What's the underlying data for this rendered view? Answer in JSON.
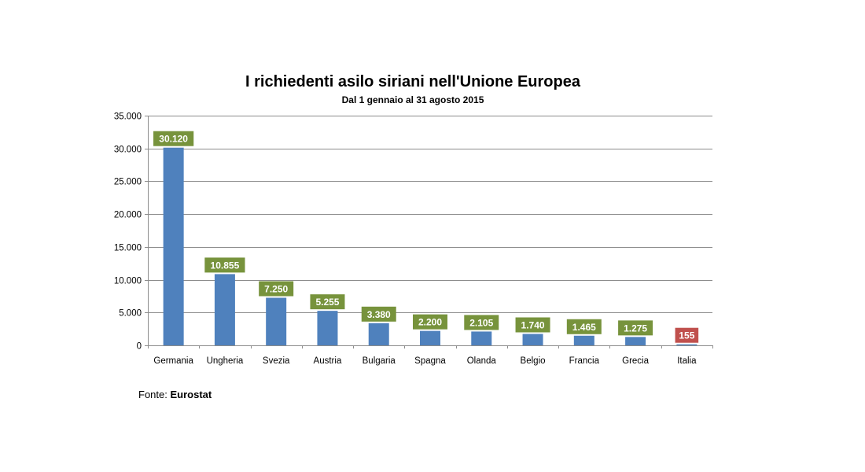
{
  "chart_data": {
    "type": "bar",
    "title": "I richiedenti asilo siriani nell'Unione Europea",
    "subtitle": "Dal 1 gennaio al 31  agosto 2015",
    "categories": [
      "Germania",
      "Ungheria",
      "Svezia",
      "Austria",
      "Bulgaria",
      "Spagna",
      "Olanda",
      "Belgio",
      "Francia",
      "Grecia",
      "Italia"
    ],
    "values": [
      30120,
      10855,
      7250,
      5255,
      3380,
      2200,
      2105,
      1740,
      1465,
      1275,
      155
    ],
    "data_labels": [
      "30.120",
      "10.855",
      "7.250",
      "5.255",
      "3.380",
      "2.200",
      "2.105",
      "1.740",
      "1.465",
      "1.275",
      "155"
    ],
    "ylim": [
      0,
      35000
    ],
    "yticks": [
      0,
      5000,
      10000,
      15000,
      20000,
      25000,
      30000,
      35000
    ],
    "ytick_labels": [
      "0",
      "5.000",
      "10.000",
      "15.000",
      "20.000",
      "25.000",
      "30.000",
      "35.000"
    ],
    "grid": true,
    "legend": "none",
    "colors": {
      "bar": "#4f81bd",
      "label_default": "#77933c",
      "label_highlight": "#c0504d",
      "grid": "#8c8c8c"
    },
    "highlight_categories": [
      "Italia"
    ]
  },
  "source": {
    "prefix": "Fonte:",
    "name": "Eurostat"
  }
}
